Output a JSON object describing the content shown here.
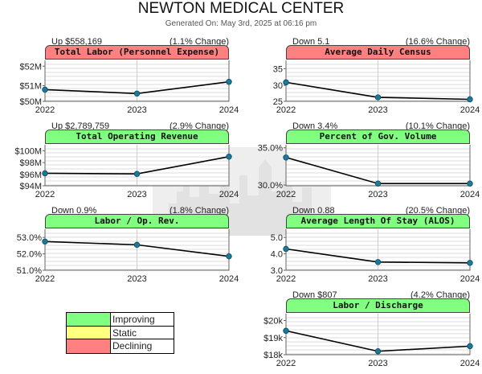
{
  "header": {
    "title": "NEWTON MEDICAL CENTER",
    "subtitle": "Generated On: May 3rd, 2025 at 06:16 pm"
  },
  "colors": {
    "improving": "#80ff80",
    "static": "#ffff80",
    "declining": "#ff8080",
    "line": "#000000",
    "marker": "#1b7a9a",
    "grid": "#bbbbbb"
  },
  "legend": {
    "items": [
      {
        "label": "Improving",
        "color": "#80ff80"
      },
      {
        "label": "Static",
        "color": "#ffff80"
      },
      {
        "label": "Declining",
        "color": "#ff8080"
      }
    ]
  },
  "chart_data": [
    {
      "type": "line",
      "title": "Total Labor (Personnel Expense)",
      "status": "declining",
      "change_amount": "Up $558,169",
      "change_percent": "(1.1% Change)",
      "x": [
        "2022",
        "2023",
        "2024"
      ],
      "values": [
        50.8,
        50.6,
        51.2
      ],
      "unit": "$M",
      "ylim": [
        50.2,
        52.3
      ],
      "ticks": [
        {
          "v": 52,
          "label": "$52M"
        },
        {
          "v": 51,
          "label": "$51M"
        },
        {
          "v": 50.2,
          "label": "$50M"
        }
      ]
    },
    {
      "type": "line",
      "title": "Average Daily Census",
      "status": "declining",
      "change_amount": "Down 5.1",
      "change_percent": "(16.6% Change)",
      "x": [
        "2022",
        "2023",
        "2024"
      ],
      "values": [
        30.9,
        26.4,
        25.8
      ],
      "ylim": [
        25.2,
        37.5
      ],
      "ticks": [
        {
          "v": 35,
          "label": "35"
        },
        {
          "v": 30,
          "label": "30"
        },
        {
          "v": 25.2,
          "label": "25"
        }
      ]
    },
    {
      "type": "line",
      "title": "Total Operating Revenue",
      "status": "improving",
      "change_amount": "Up $2,789,759",
      "change_percent": "(2.9% Change)",
      "x": [
        "2022",
        "2023",
        "2024"
      ],
      "values": [
        96.2,
        96.1,
        99.0
      ],
      "unit": "$M",
      "ylim": [
        94.1,
        101.0
      ],
      "ticks": [
        {
          "v": 100,
          "label": "$100M"
        },
        {
          "v": 98,
          "label": "$98M"
        },
        {
          "v": 96,
          "label": "$96M"
        },
        {
          "v": 94.1,
          "label": "$94M"
        }
      ]
    },
    {
      "type": "line",
      "title": "Percent of Gov. Volume",
      "status": "improving",
      "change_amount": "Down 3.4%",
      "change_percent": "(10.1% Change)",
      "x": [
        "2022",
        "2023",
        "2024"
      ],
      "values": [
        33.7,
        30.2,
        30.2
      ],
      "unit": "%",
      "ylim": [
        29.9,
        35.4
      ],
      "ticks": [
        {
          "v": 35,
          "label": "35.0%"
        },
        {
          "v": 30,
          "label": "30.0%"
        }
      ]
    },
    {
      "type": "line",
      "title": "Labor / Op. Rev.",
      "status": "improving",
      "change_amount": "Down 0.9%",
      "change_percent": "(1.8% Change)",
      "x": [
        "2022",
        "2023",
        "2024"
      ],
      "values": [
        52.75,
        52.55,
        51.85
      ],
      "unit": "%",
      "ylim": [
        51.0,
        53.5
      ],
      "ticks": [
        {
          "v": 53,
          "label": "53.0%"
        },
        {
          "v": 52,
          "label": "52.0%"
        },
        {
          "v": 51,
          "label": "51.0%"
        }
      ]
    },
    {
      "type": "line",
      "title": "Average Length Of Stay (ALOS)",
      "status": "improving",
      "change_amount": "Down 0.88",
      "change_percent": "(20.5% Change)",
      "x": [
        "2022",
        "2023",
        "2024"
      ],
      "values": [
        4.3,
        3.5,
        3.45
      ],
      "ylim": [
        3.0,
        5.5
      ],
      "ticks": [
        {
          "v": 5,
          "label": "5.0"
        },
        {
          "v": 4,
          "label": "4.0"
        },
        {
          "v": 3,
          "label": "3.0"
        }
      ]
    },
    {
      "type": "line",
      "title": "Labor / Discharge",
      "status": "improving",
      "change_amount": "Down $807",
      "change_percent": "(4.2% Change)",
      "x": [
        "2022",
        "2023",
        "2024"
      ],
      "values": [
        19.4,
        18.2,
        18.5
      ],
      "unit": "$k",
      "ylim": [
        18.0,
        20.4
      ],
      "ticks": [
        {
          "v": 20,
          "label": "$20k"
        },
        {
          "v": 19,
          "label": "$19k"
        },
        {
          "v": 18,
          "label": "$18k"
        }
      ]
    }
  ]
}
